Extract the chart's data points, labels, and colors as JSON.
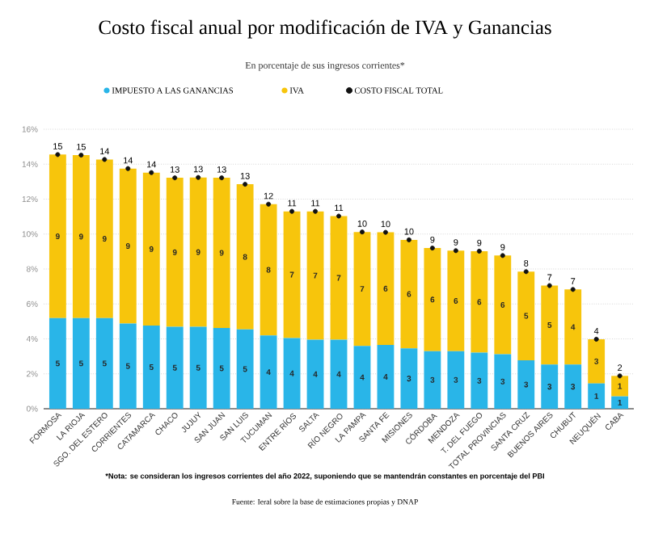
{
  "chart_data": {
    "type": "bar",
    "stacked": true,
    "title": "Costo fiscal anual por modificación de IVA y Ganancias",
    "subtitle": "En porcentaje de sus ingresos corrientes*",
    "categories": [
      "FORMOSA",
      "LA RIOJA",
      "SGO. DEL ESTERO",
      "CORRIENTES",
      "CATAMARCA",
      "CHACO",
      "JUJUY",
      "SAN JUAN",
      "SAN LUIS",
      "TUCUMAN",
      "ENTRE RÍOS",
      "SALTA",
      "RÍO NEGRO",
      "LA PAMPA",
      "SANTA FE",
      "MISIONES",
      "CÓRDOBA",
      "MENDOZA",
      "T. DEL FUEGO",
      "TOTAL PROVINCIAS",
      "SANTA CRUZ",
      "BUENOS AIRES",
      "CHUBUT",
      "NEUQUÉN",
      "CABA"
    ],
    "series": [
      {
        "name": "IMPUESTO A LAS GANANCIAS",
        "color": "#29b5e8",
        "values": [
          5.19,
          5.19,
          5.19,
          4.88,
          4.76,
          4.69,
          4.69,
          4.63,
          4.54,
          4.2,
          4.05,
          3.95,
          3.95,
          3.6,
          3.65,
          3.46,
          3.3,
          3.3,
          3.21,
          3.12,
          2.78,
          2.53,
          2.53,
          1.45,
          0.71
        ],
        "value_labels": [
          "5",
          "5",
          "5",
          "5",
          "5",
          "5",
          "5",
          "5",
          "5",
          "4",
          "4",
          "4",
          "4",
          "4",
          "4",
          "3",
          "3",
          "3",
          "3",
          "3",
          "3",
          "3",
          "3",
          "1",
          "1"
        ]
      },
      {
        "name": "IVA",
        "color": "#f7c50c",
        "values": [
          9.36,
          9.33,
          9.08,
          8.87,
          8.76,
          8.53,
          8.55,
          8.59,
          8.31,
          7.51,
          7.25,
          7.35,
          7.08,
          6.52,
          6.45,
          6.21,
          5.9,
          5.75,
          5.81,
          5.65,
          5.07,
          4.52,
          4.3,
          2.53,
          1.17
        ],
        "value_labels": [
          "9",
          "9",
          "9",
          "9",
          "9",
          "9",
          "9",
          "9",
          "8",
          "8",
          "7",
          "7",
          "7",
          "7",
          "6",
          "6",
          "6",
          "6",
          "6",
          "6",
          "5",
          "5",
          "4",
          "3",
          "1"
        ]
      },
      {
        "name": "COSTO FISCAL TOTAL",
        "type": "scatter",
        "marker": "circle",
        "color": "#111111",
        "values": [
          14.55,
          14.52,
          14.27,
          13.75,
          13.52,
          13.22,
          13.24,
          13.22,
          12.85,
          11.71,
          11.3,
          11.3,
          11.03,
          10.12,
          10.1,
          9.67,
          9.2,
          9.05,
          9.02,
          8.77,
          7.85,
          7.05,
          6.83,
          3.98,
          1.88
        ],
        "value_labels": [
          "15",
          "15",
          "14",
          "14",
          "14",
          "13",
          "13",
          "13",
          "13",
          "12",
          "11",
          "11",
          "11",
          "10",
          "10",
          "10",
          "9",
          "9",
          "9",
          "9",
          "8",
          "7",
          "7",
          "4",
          "2"
        ]
      }
    ],
    "ylim": [
      0,
      16
    ],
    "yticks": [
      {
        "value": 0,
        "label": "0%"
      },
      {
        "value": 2,
        "label": "2%"
      },
      {
        "value": 4,
        "label": "4%"
      },
      {
        "value": 6,
        "label": "6%"
      },
      {
        "value": 8,
        "label": "8%"
      },
      {
        "value": 10,
        "label": "10%"
      },
      {
        "value": 12,
        "label": "12%"
      },
      {
        "value": 14,
        "label": "14%"
      },
      {
        "value": 16,
        "label": "16%"
      }
    ],
    "grid": "y",
    "legend": "top",
    "annotations": [
      "*Nota: se consideran los ingresos corrientes del año 2022, suponiendo que se mantendrán constantes en porcentaje del PBI",
      "Fuente: Ieral sobre la base de estimaciones propias y DNAP"
    ]
  }
}
